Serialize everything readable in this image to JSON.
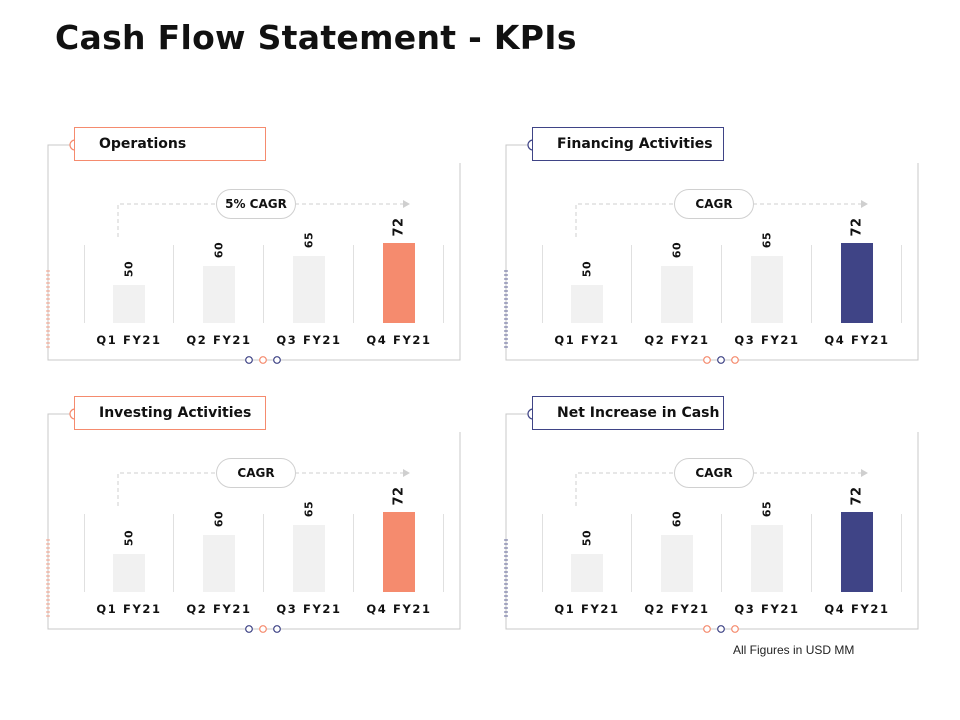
{
  "title": "Cash Flow Statement - KPIs",
  "footnote": "All Figures in USD MM",
  "colors": {
    "orange": "#f58b6e",
    "navy": "#3f4486",
    "bar_default": "#f1f1f1",
    "line": "#c8c8c8"
  },
  "panels": [
    {
      "title": "Operations",
      "cagr": "5% CAGR",
      "accent": "orange"
    },
    {
      "title": "Financing Activities",
      "cagr": "CAGR",
      "accent": "navy"
    },
    {
      "title": "Investing Activities",
      "cagr": "CAGR",
      "accent": "orange"
    },
    {
      "title": "Net Increase in Cash",
      "cagr": "CAGR",
      "accent": "navy"
    }
  ],
  "chart_data": [
    {
      "type": "bar",
      "title": "Operations",
      "categories": [
        "Q1 FY21",
        "Q2 FY21",
        "Q3 FY21",
        "Q4 FY21"
      ],
      "values": [
        50,
        60,
        65,
        72
      ],
      "highlight": "Q4 FY21",
      "annotation": "5% CAGR"
    },
    {
      "type": "bar",
      "title": "Financing Activities",
      "categories": [
        "Q1 FY21",
        "Q2 FY21",
        "Q3 FY21",
        "Q4 FY21"
      ],
      "values": [
        50,
        60,
        65,
        72
      ],
      "highlight": "Q4 FY21",
      "annotation": "CAGR"
    },
    {
      "type": "bar",
      "title": "Investing Activities",
      "categories": [
        "Q1 FY21",
        "Q2 FY21",
        "Q3 FY21",
        "Q4 FY21"
      ],
      "values": [
        50,
        60,
        65,
        72
      ],
      "highlight": "Q4 FY21",
      "annotation": "CAGR"
    },
    {
      "type": "bar",
      "title": "Net Increase in Cash",
      "categories": [
        "Q1 FY21",
        "Q2 FY21",
        "Q3 FY21",
        "Q4 FY21"
      ],
      "values": [
        50,
        60,
        65,
        72
      ],
      "highlight": "Q4 FY21",
      "annotation": "CAGR"
    }
  ]
}
